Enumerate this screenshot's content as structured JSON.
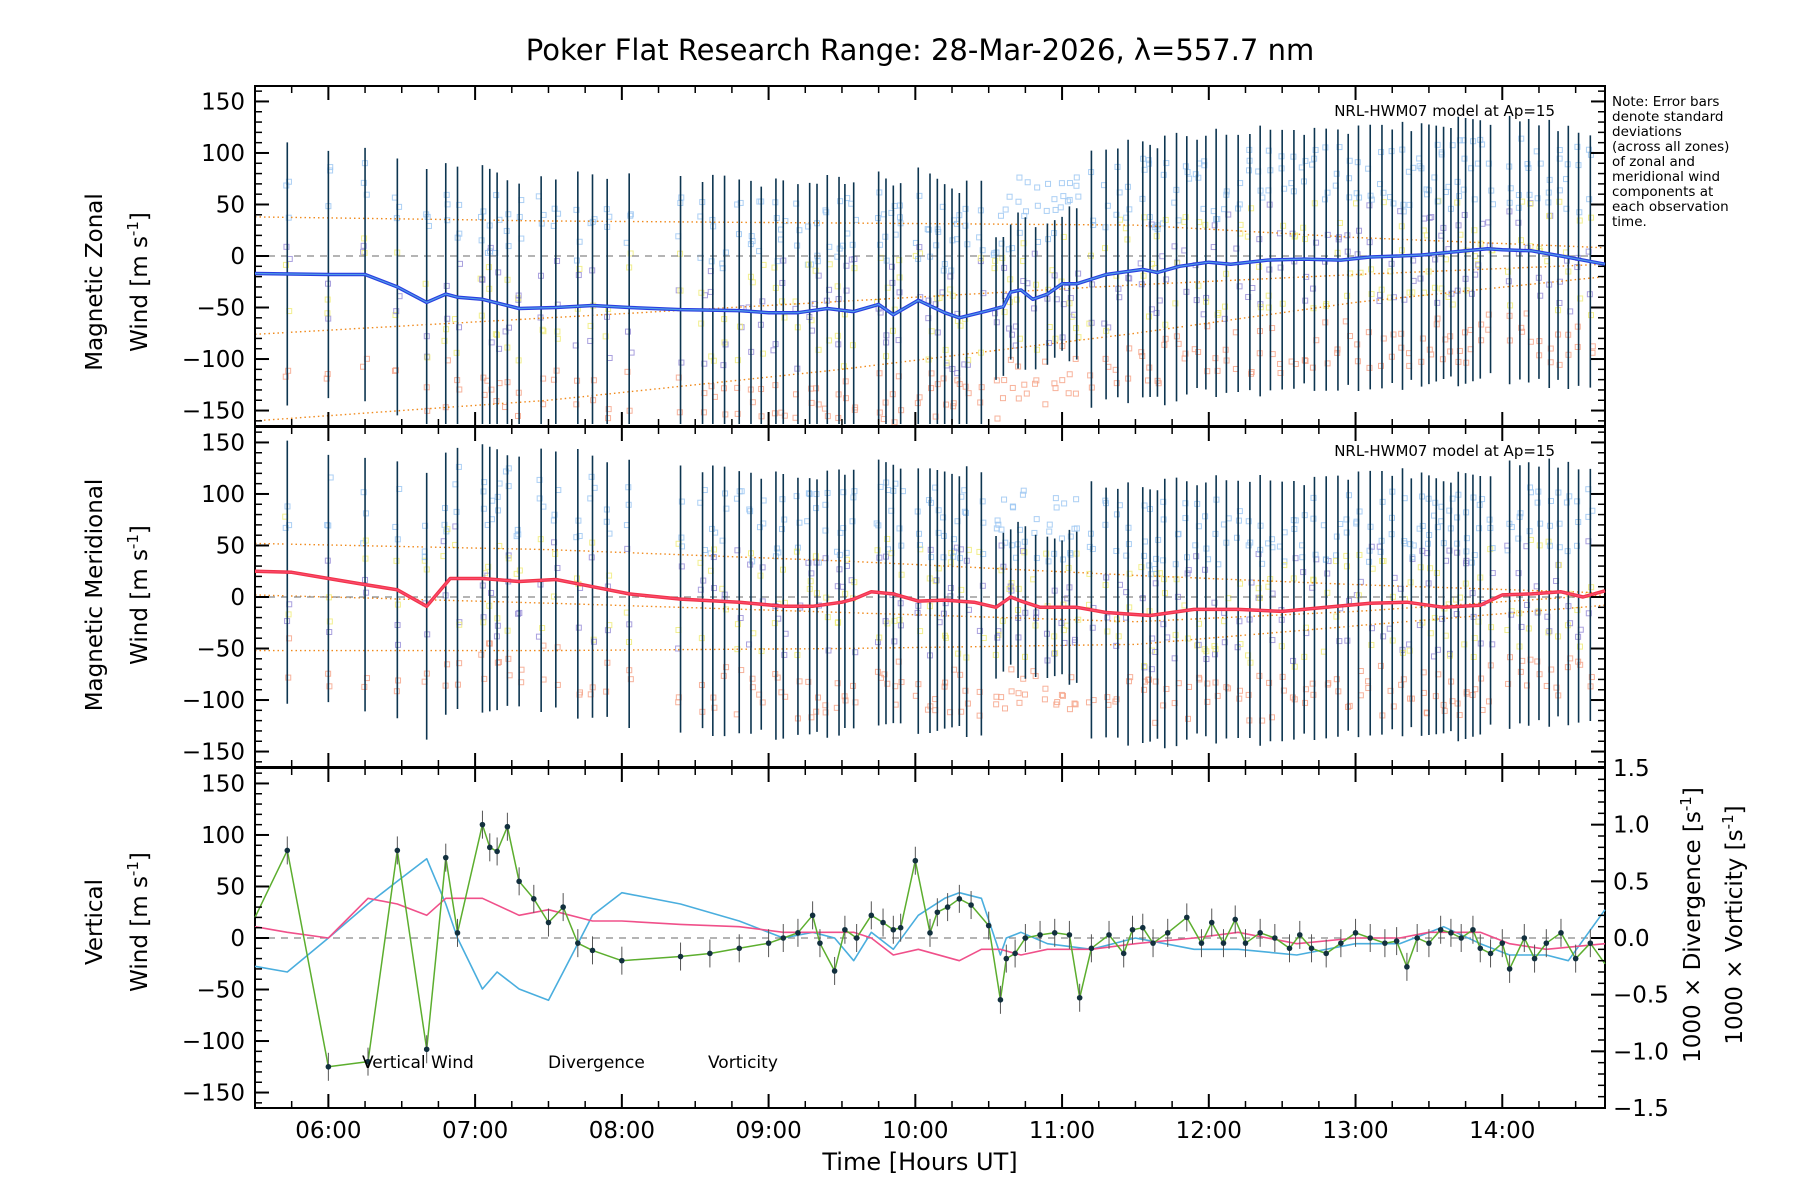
{
  "title": "Poker Flat Research Range: 28-Mar-2026, λ=557.7 nm",
  "note": [
    "Note: Error bars",
    "denote standard",
    "deviations",
    "(across all zones)",
    "of zonal and",
    "meridional wind",
    "components at",
    "each observation",
    "time."
  ],
  "colors": {
    "zonal": "#2a3fe0",
    "zonal_light": "#5ab4e8",
    "meridional": "#f03548",
    "meridional_light": "#ff4f7a",
    "model": "#f08a1c",
    "vertical": "#5cae2e",
    "divergence": "#4aaede",
    "vorticity": "#f0508a",
    "errorbar": "#0d3550",
    "point": "#12303e",
    "scatter_blue": "#9cc7f2",
    "scatter_purple": "#9a8fd8",
    "scatter_orange": "#f6a48a",
    "scatter_yellow": "#f0ec7a"
  },
  "chart_data": [
    {
      "type": "line",
      "name": "zonal",
      "ylabel_line1": "Magnetic Zonal",
      "ylabel_line2": "Wind",
      "ylabel_units": "[m s",
      "ylabel_exp": "-1",
      "ylabel_close": "]",
      "ylim": [
        -165,
        165
      ],
      "yticks": [
        150,
        100,
        50,
        0,
        -50,
        -100,
        -150
      ],
      "model_label": "NRL-HWM07 model at Ap=15",
      "model_lines": [
        {
          "x": [
            5.5,
            7.5,
            9.5,
            11.5,
            13.0,
            14.7
          ],
          "y": [
            38,
            34,
            32,
            30,
            18,
            8
          ]
        },
        {
          "x": [
            5.5,
            7.5,
            9.5,
            11.5,
            13.0,
            14.7
          ],
          "y": [
            -76,
            -60,
            -44,
            -28,
            -18,
            -8
          ]
        },
        {
          "x": [
            5.5,
            7.5,
            9.5,
            11.5,
            13.0,
            14.7
          ],
          "y": [
            -160,
            -140,
            -110,
            -75,
            -45,
            -20
          ]
        }
      ],
      "obs_times": [
        5.72,
        6.0,
        6.25,
        6.47,
        6.67,
        6.8,
        6.88,
        7.05,
        7.1,
        7.15,
        7.22,
        7.3,
        7.45,
        7.55,
        7.7,
        7.8,
        7.9,
        8.05,
        8.4,
        8.55,
        8.62,
        8.7,
        8.8,
        8.88,
        8.95,
        9.05,
        9.1,
        9.2,
        9.28,
        9.33,
        9.4,
        9.48,
        9.52,
        9.58,
        9.75,
        9.8,
        9.85,
        9.9,
        10.02,
        10.1,
        10.15,
        10.2,
        10.25,
        10.3,
        10.35,
        10.45,
        10.55,
        10.6,
        10.65,
        10.7,
        10.75,
        10.82,
        10.9,
        10.95,
        11.0,
        11.05,
        11.1,
        11.2,
        11.3,
        11.38,
        11.45,
        11.55,
        11.6,
        11.65,
        11.7,
        11.78,
        11.85,
        11.92,
        11.98,
        12.05,
        12.12,
        12.2,
        12.28,
        12.35,
        12.42,
        12.5,
        12.58,
        12.65,
        12.72,
        12.8,
        12.88,
        12.95,
        13.02,
        13.1,
        13.18,
        13.25,
        13.32,
        13.38,
        13.45,
        13.5,
        13.55,
        13.6,
        13.65,
        13.7,
        13.75,
        13.8,
        13.85,
        13.92,
        14.05,
        14.12,
        14.18,
        14.25,
        14.32,
        14.38,
        14.45,
        14.52,
        14.6
      ],
      "series": [
        {
          "name": "Zonal wind",
          "x": [
            5.5,
            6.0,
            6.25,
            6.47,
            6.67,
            6.8,
            6.88,
            7.05,
            7.3,
            7.55,
            7.8,
            8.05,
            8.4,
            8.8,
            9.0,
            9.2,
            9.4,
            9.52,
            9.58,
            9.75,
            9.85,
            10.02,
            10.2,
            10.3,
            10.5,
            10.6,
            10.65,
            10.72,
            10.8,
            10.9,
            11.0,
            11.1,
            11.3,
            11.55,
            11.65,
            11.8,
            12.0,
            12.15,
            12.4,
            12.65,
            12.9,
            13.1,
            13.3,
            13.45,
            13.6,
            13.75,
            13.9,
            14.0,
            14.2,
            14.4,
            14.7
          ],
          "y": [
            -17,
            -18,
            -18,
            -30,
            -45,
            -37,
            -40,
            -42,
            -51,
            -50,
            -48,
            -50,
            -52,
            -53,
            -55,
            -55,
            -51,
            -53,
            -54,
            -47,
            -57,
            -43,
            -55,
            -60,
            -53,
            -49,
            -35,
            -33,
            -42,
            -37,
            -27,
            -27,
            -18,
            -13,
            -16,
            -10,
            -6,
            -8,
            -4,
            -3,
            -4,
            -1,
            0,
            1,
            3,
            5,
            7,
            6,
            5,
            0,
            -8
          ]
        }
      ]
    },
    {
      "type": "line",
      "name": "meridional",
      "ylabel_line1": "Magnetic Meridional",
      "ylabel_line2": "Wind",
      "ylabel_units": "[m s",
      "ylabel_exp": "-1",
      "ylabel_close": "]",
      "ylim": [
        -165,
        165
      ],
      "yticks": [
        150,
        100,
        50,
        0,
        -50,
        -100,
        -150
      ],
      "model_label": "NRL-HWM07 model at Ap=15",
      "model_lines": [
        {
          "x": [
            5.5,
            7.5,
            9.5,
            11.5,
            13.0,
            14.7
          ],
          "y": [
            52,
            46,
            35,
            21,
            12,
            4
          ]
        },
        {
          "x": [
            5.5,
            7.5,
            9.5,
            11.5,
            13.0,
            14.7
          ],
          "y": [
            2,
            -6,
            -15,
            -24,
            -14,
            2
          ]
        },
        {
          "x": [
            5.5,
            7.5,
            9.5,
            11.5,
            13.0,
            14.7
          ],
          "y": [
            -52,
            -52,
            -50,
            -46,
            -28,
            -8
          ]
        }
      ],
      "series": [
        {
          "name": "Meridional wind",
          "x": [
            5.5,
            5.75,
            6.0,
            6.25,
            6.47,
            6.67,
            6.83,
            7.05,
            7.3,
            7.55,
            7.8,
            8.05,
            8.4,
            8.8,
            9.1,
            9.3,
            9.5,
            9.58,
            9.7,
            9.85,
            10.02,
            10.2,
            10.4,
            10.55,
            10.65,
            10.72,
            10.85,
            11.1,
            11.3,
            11.6,
            11.9,
            12.2,
            12.5,
            12.8,
            13.1,
            13.35,
            13.6,
            13.85,
            14.0,
            14.2,
            14.4,
            14.55,
            14.7
          ],
          "y": [
            25,
            24,
            18,
            12,
            7,
            -9,
            18,
            18,
            15,
            17,
            10,
            3,
            -2,
            -5,
            -9,
            -9,
            -5,
            -2,
            5,
            3,
            -4,
            -3,
            -5,
            -10,
            0,
            -4,
            -10,
            -10,
            -15,
            -18,
            -12,
            -12,
            -14,
            -10,
            -6,
            -5,
            -10,
            -8,
            2,
            3,
            5,
            0,
            6
          ]
        }
      ]
    },
    {
      "type": "line",
      "name": "vertical",
      "ylabel_line1": "Vertical",
      "ylabel_line2": "Wind",
      "ylabel_units": "[m s",
      "ylabel_exp": "-1",
      "ylabel_close": "]",
      "ylim": [
        -165,
        165
      ],
      "yticks": [
        150,
        100,
        50,
        0,
        -50,
        -100,
        -150
      ],
      "right_ylim": [
        -1.5,
        1.5
      ],
      "right_yticks": [
        "1.5",
        "1.0",
        "0.5",
        "0.0",
        "-0.5",
        "-1.0",
        "-1.5"
      ],
      "right_ylabel1": "1000 × Divergence",
      "right_ylabel1_units": "[s",
      "right_ylabel2": "1000 × Vorticity",
      "right_ylabel2_units": "[s",
      "right_ylabel_exp": "-1",
      "right_ylabel_close": "]",
      "legend": [
        "Vertical Wind",
        "Divergence",
        "Vorticity"
      ],
      "xlabel": "Time [Hours UT]",
      "xlim": [
        5.5,
        14.7
      ],
      "xticks": [
        6,
        7,
        8,
        9,
        10,
        11,
        12,
        13,
        14
      ],
      "xtick_labels": [
        "06:00",
        "07:00",
        "08:00",
        "09:00",
        "10:00",
        "11:00",
        "12:00",
        "13:00",
        "14:00"
      ],
      "series": [
        {
          "name": "Vertical Wind",
          "x": [
            5.5,
            5.72,
            6.0,
            6.27,
            6.47,
            6.67,
            6.8,
            6.88,
            7.05,
            7.1,
            7.15,
            7.22,
            7.3,
            7.4,
            7.5,
            7.6,
            7.7,
            7.8,
            8.0,
            8.4,
            8.6,
            8.8,
            9.0,
            9.1,
            9.2,
            9.3,
            9.35,
            9.45,
            9.52,
            9.6,
            9.7,
            9.78,
            9.85,
            9.9,
            10.0,
            10.1,
            10.15,
            10.22,
            10.3,
            10.38,
            10.5,
            10.58,
            10.62,
            10.68,
            10.75,
            10.85,
            10.95,
            11.05,
            11.12,
            11.2,
            11.32,
            11.42,
            11.48,
            11.55,
            11.62,
            11.72,
            11.85,
            11.95,
            12.02,
            12.1,
            12.18,
            12.25,
            12.35,
            12.45,
            12.55,
            12.62,
            12.7,
            12.8,
            12.9,
            13.0,
            13.1,
            13.2,
            13.28,
            13.35,
            13.42,
            13.5,
            13.58,
            13.65,
            13.72,
            13.8,
            13.85,
            13.92,
            14.0,
            14.05,
            14.15,
            14.22,
            14.3,
            14.4,
            14.5,
            14.6,
            14.7
          ],
          "y": [
            20,
            85,
            -125,
            -120,
            85,
            -108,
            78,
            5,
            110,
            88,
            84,
            108,
            55,
            38,
            15,
            30,
            -5,
            -12,
            -22,
            -18,
            -15,
            -10,
            -5,
            0,
            5,
            22,
            -5,
            -32,
            8,
            0,
            22,
            15,
            8,
            10,
            75,
            5,
            25,
            30,
            38,
            32,
            12,
            -60,
            -20,
            -15,
            0,
            3,
            5,
            3,
            -58,
            -10,
            3,
            -15,
            8,
            10,
            -5,
            5,
            20,
            -5,
            15,
            -5,
            18,
            -5,
            5,
            0,
            -10,
            3,
            -10,
            -15,
            -5,
            5,
            0,
            -5,
            -3,
            -28,
            0,
            -5,
            8,
            5,
            0,
            8,
            -10,
            -15,
            -5,
            -30,
            0,
            -20,
            -5,
            5,
            -20,
            -5,
            -25
          ]
        },
        {
          "name": "Divergence",
          "x": [
            5.5,
            5.72,
            6.0,
            6.27,
            6.47,
            6.67,
            6.8,
            6.88,
            7.05,
            7.15,
            7.3,
            7.5,
            7.6,
            7.8,
            8.0,
            8.4,
            8.8,
            9.1,
            9.3,
            9.45,
            9.58,
            9.7,
            9.85,
            10.02,
            10.2,
            10.3,
            10.45,
            10.58,
            10.62,
            10.72,
            10.9,
            11.2,
            11.5,
            11.9,
            12.2,
            12.6,
            13.0,
            13.3,
            13.6,
            13.85,
            14.05,
            14.3,
            14.45,
            14.7
          ],
          "y": [
            -0.25,
            -0.3,
            0.0,
            0.3,
            0.5,
            0.7,
            0.3,
            0.0,
            -0.45,
            -0.3,
            -0.45,
            -0.55,
            -0.3,
            0.2,
            0.4,
            0.3,
            0.15,
            0.0,
            0.05,
            0.0,
            -0.2,
            0.05,
            -0.1,
            0.2,
            0.35,
            0.4,
            0.35,
            -0.15,
            0.0,
            0.05,
            -0.05,
            -0.1,
            0.0,
            -0.1,
            -0.1,
            -0.15,
            -0.05,
            -0.05,
            0.1,
            -0.05,
            -0.15,
            -0.15,
            -0.2,
            0.25
          ]
        },
        {
          "name": "Vorticity",
          "x": [
            5.5,
            5.72,
            6.0,
            6.27,
            6.47,
            6.67,
            6.8,
            6.88,
            7.05,
            7.3,
            7.5,
            7.8,
            8.0,
            8.4,
            8.8,
            9.1,
            9.3,
            9.58,
            9.7,
            9.85,
            10.02,
            10.3,
            10.45,
            10.58,
            10.72,
            10.9,
            11.2,
            11.5,
            11.9,
            12.2,
            12.6,
            13.0,
            13.3,
            13.5,
            13.85,
            14.05,
            14.3,
            14.7
          ],
          "y": [
            0.1,
            0.05,
            0.0,
            0.35,
            0.3,
            0.2,
            0.35,
            0.35,
            0.35,
            0.2,
            0.25,
            0.15,
            0.15,
            0.12,
            0.1,
            0.05,
            0.05,
            0.05,
            0.0,
            -0.15,
            -0.1,
            -0.2,
            -0.1,
            -0.1,
            -0.15,
            -0.1,
            -0.1,
            -0.05,
            0.0,
            0.05,
            -0.05,
            0.0,
            0.0,
            0.05,
            0.05,
            -0.05,
            -0.1,
            -0.05
          ]
        }
      ]
    }
  ]
}
